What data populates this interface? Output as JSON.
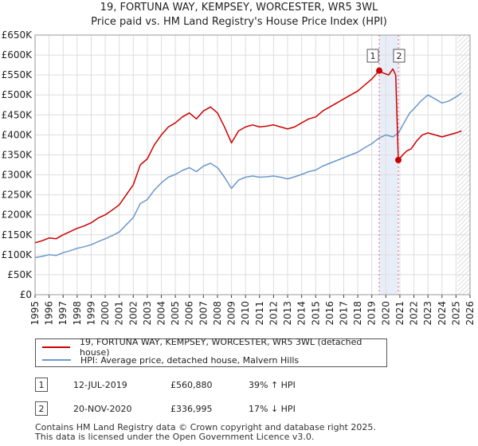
{
  "title_line1": "19, FORTUNA WAY, KEMPSEY, WORCESTER, WR5 3WL",
  "title_line2": "Price paid vs. HM Land Registry's House Price Index (HPI)",
  "colors": {
    "property": "#cc0000",
    "hpi": "#6a98cc",
    "highlight": "#e8eef8",
    "marker_line": "#e06080"
  },
  "chart_data": {
    "type": "line",
    "xlim": [
      1995,
      2026
    ],
    "ylim": [
      0,
      650000
    ],
    "y_ticks": [
      0,
      50000,
      100000,
      150000,
      200000,
      250000,
      300000,
      350000,
      400000,
      450000,
      500000,
      550000,
      600000,
      650000
    ],
    "y_tick_labels": [
      "£0",
      "£50K",
      "£100K",
      "£150K",
      "£200K",
      "£250K",
      "£300K",
      "£350K",
      "£400K",
      "£450K",
      "£500K",
      "£550K",
      "£600K",
      "£650K"
    ],
    "x_ticks": [
      1995,
      1996,
      1997,
      1998,
      1999,
      2000,
      2001,
      2002,
      2003,
      2004,
      2005,
      2006,
      2007,
      2008,
      2009,
      2010,
      2011,
      2012,
      2013,
      2014,
      2015,
      2016,
      2017,
      2018,
      2019,
      2020,
      2021,
      2022,
      2023,
      2024,
      2025,
      2026
    ],
    "x_tick_labels": [
      "1995",
      "1996",
      "1997",
      "1998",
      "1999",
      "2000",
      "2001",
      "2002",
      "2003",
      "2004",
      "2005",
      "2006",
      "2007",
      "2008",
      "2009",
      "2010",
      "2011",
      "2012",
      "2013",
      "2014",
      "2015",
      "2016",
      "2017",
      "2018",
      "2019",
      "2020",
      "2021",
      "2022",
      "2023",
      "2024",
      "2025",
      "2026"
    ],
    "grid": true,
    "forecast_start": 2025.1,
    "highlight_band": [
      2019.53,
      2020.89
    ],
    "series": [
      {
        "name": "19, FORTUNA WAY, KEMPSEY, WORCESTER, WR5 3WL (detached house)",
        "x": [
          1995.0,
          1995.5,
          1996.0,
          1996.5,
          1997.0,
          1997.5,
          1998.0,
          1998.5,
          1999.0,
          1999.5,
          2000.0,
          2000.5,
          2001.0,
          2001.5,
          2002.0,
          2002.5,
          2003.0,
          2003.5,
          2004.0,
          2004.5,
          2005.0,
          2005.5,
          2006.0,
          2006.5,
          2007.0,
          2007.5,
          2008.0,
          2008.5,
          2009.0,
          2009.5,
          2010.0,
          2010.5,
          2011.0,
          2011.5,
          2012.0,
          2012.5,
          2013.0,
          2013.5,
          2014.0,
          2014.5,
          2015.0,
          2015.5,
          2016.0,
          2016.5,
          2017.0,
          2017.5,
          2018.0,
          2018.5,
          2019.0,
          2019.53,
          2019.8,
          2020.2,
          2020.5,
          2020.7,
          2020.89,
          2021.2,
          2021.5,
          2021.8,
          2022.2,
          2022.6,
          2023.0,
          2023.5,
          2024.0,
          2024.5,
          2025.0,
          2025.4
        ],
        "values": [
          130000,
          135000,
          142000,
          140000,
          150000,
          158000,
          166000,
          172000,
          180000,
          192000,
          200000,
          212000,
          225000,
          250000,
          275000,
          325000,
          340000,
          375000,
          400000,
          420000,
          430000,
          445000,
          455000,
          440000,
          460000,
          470000,
          455000,
          420000,
          380000,
          410000,
          420000,
          425000,
          420000,
          422000,
          425000,
          420000,
          415000,
          420000,
          430000,
          440000,
          445000,
          460000,
          470000,
          480000,
          490000,
          500000,
          510000,
          525000,
          540000,
          560880,
          555000,
          550000,
          565000,
          550000,
          336995,
          350000,
          360000,
          365000,
          385000,
          400000,
          405000,
          400000,
          395000,
          400000,
          405000,
          410000
        ]
      },
      {
        "name": "HPI: Average price, detached house, Malvern Hills",
        "x": [
          1995.0,
          1995.5,
          1996.0,
          1996.5,
          1997.0,
          1997.5,
          1998.0,
          1998.5,
          1999.0,
          1999.5,
          2000.0,
          2000.5,
          2001.0,
          2001.5,
          2002.0,
          2002.5,
          2003.0,
          2003.5,
          2004.0,
          2004.5,
          2005.0,
          2005.5,
          2006.0,
          2006.5,
          2007.0,
          2007.5,
          2008.0,
          2008.5,
          2009.0,
          2009.5,
          2010.0,
          2010.5,
          2011.0,
          2011.5,
          2012.0,
          2012.5,
          2013.0,
          2013.5,
          2014.0,
          2014.5,
          2015.0,
          2015.5,
          2016.0,
          2016.5,
          2017.0,
          2017.5,
          2018.0,
          2018.5,
          2019.0,
          2019.5,
          2020.0,
          2020.5,
          2020.9,
          2021.3,
          2021.7,
          2022.0,
          2022.5,
          2023.0,
          2023.5,
          2024.0,
          2024.5,
          2025.0,
          2025.4
        ],
        "values": [
          93000,
          96000,
          100000,
          98000,
          105000,
          110000,
          116000,
          120000,
          125000,
          133000,
          140000,
          148000,
          157000,
          175000,
          193000,
          228000,
          238000,
          262000,
          280000,
          294000,
          301000,
          311000,
          318000,
          308000,
          322000,
          329000,
          318000,
          294000,
          266000,
          287000,
          294000,
          297000,
          294000,
          295000,
          297000,
          294000,
          290000,
          295000,
          301000,
          308000,
          312000,
          322000,
          329000,
          336000,
          343000,
          350000,
          357000,
          368000,
          378000,
          392000,
          400000,
          395000,
          405000,
          430000,
          455000,
          465000,
          485000,
          500000,
          490000,
          480000,
          485000,
          495000,
          505000
        ]
      }
    ],
    "markers": [
      {
        "label": "1",
        "x": 2019.53,
        "y": 560880
      },
      {
        "label": "2",
        "x": 2020.89,
        "y": 336995
      }
    ]
  },
  "legend": {
    "property": "19, FORTUNA WAY, KEMPSEY, WORCESTER, WR5 3WL (detached house)",
    "hpi": "HPI: Average price, detached house, Malvern Hills"
  },
  "transactions": [
    {
      "num": "1",
      "date": "12-JUL-2019",
      "price": "£560,880",
      "hpi": "39% ↑ HPI"
    },
    {
      "num": "2",
      "date": "20-NOV-2020",
      "price": "£336,995",
      "hpi": "17% ↓ HPI"
    }
  ],
  "footer": {
    "line1": "Contains HM Land Registry data © Crown copyright and database right 2025.",
    "line2": "This data is licensed under the Open Government Licence v3.0."
  }
}
